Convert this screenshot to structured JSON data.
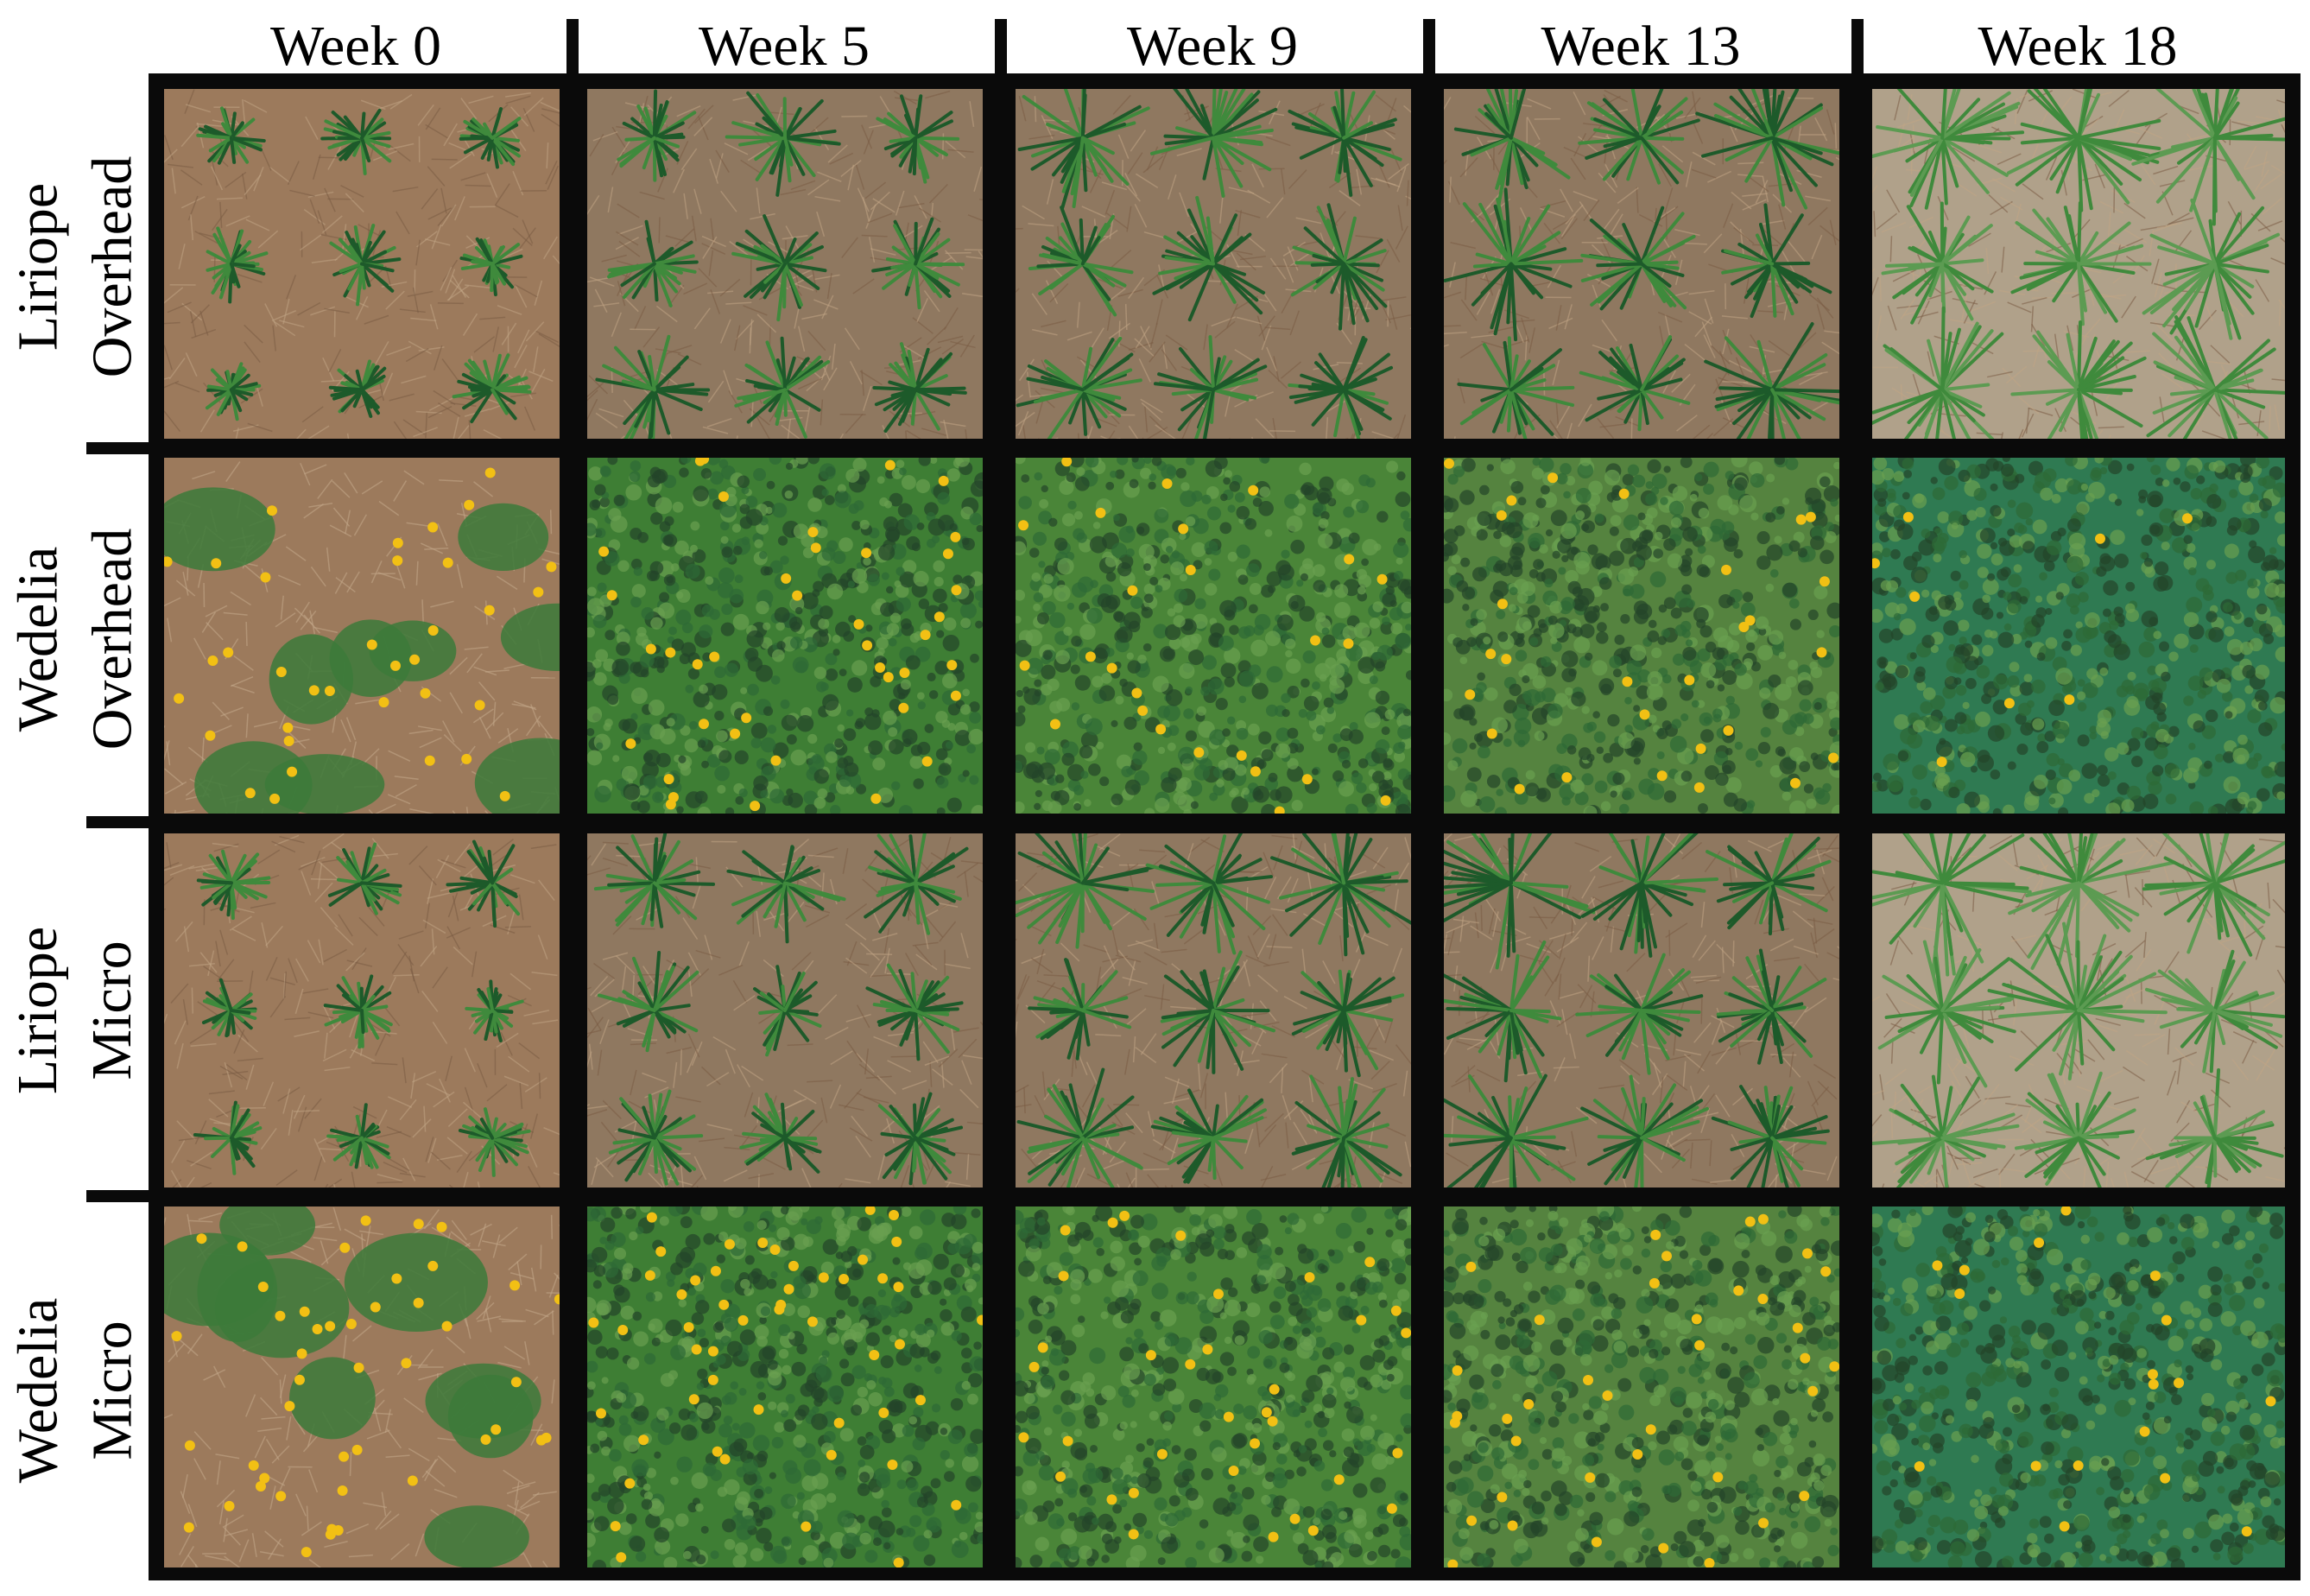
{
  "columns": [
    "Week 0",
    "Week 5",
    "Week 9",
    "Week 13",
    "Week 18"
  ],
  "rows": [
    {
      "line1": "Liriope",
      "line2": "Overhead",
      "kind": "liriope"
    },
    {
      "line1": "Wedelia",
      "line2": "Overhead",
      "kind": "wedelia"
    },
    {
      "line1": "Liriope",
      "line2": "Micro",
      "kind": "liriope"
    },
    {
      "line1": "Wedelia",
      "line2": "Micro",
      "kind": "wedelia"
    }
  ],
  "colors": {
    "mulch": "#9c7a5c",
    "mulch_dark": "#7a5c44",
    "leaf_dark": "#1d5a2a",
    "leaf_light": "#3f8a3c",
    "flower": "#f2c014",
    "grid_border": "#0a0a0a"
  }
}
